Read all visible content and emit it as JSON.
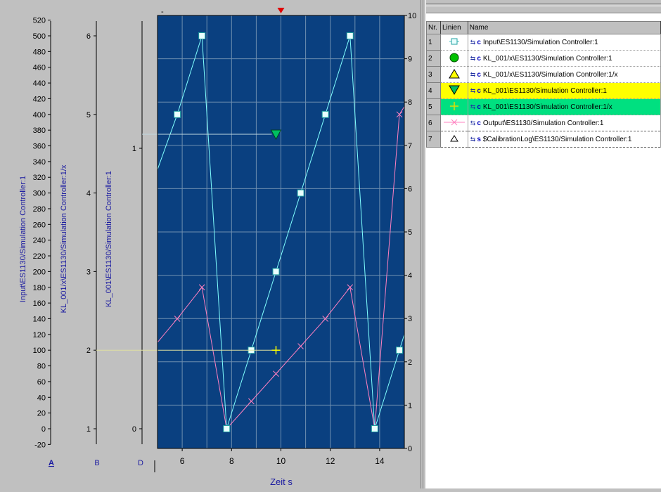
{
  "chart_data": {
    "type": "line",
    "xlabel": "Zeit s",
    "xlim": [
      5,
      15
    ],
    "x_ticks": [
      "6",
      "8",
      "10",
      "12",
      "14"
    ],
    "axes": [
      {
        "id": "A",
        "label": "Input\\ES1130/Simulation Controller:1",
        "range": [
          -20,
          520
        ],
        "ticks": [
          "520",
          "500",
          "480",
          "460",
          "440",
          "420",
          "400",
          "380",
          "360",
          "340",
          "320",
          "300",
          "280",
          "260",
          "240",
          "220",
          "200",
          "180",
          "160",
          "140",
          "120",
          "100",
          "80",
          "60",
          "40",
          "20",
          "0",
          "-20"
        ]
      },
      {
        "id": "B",
        "label": "KL_001/x\\ES1130/Simulation Controller:1/x",
        "range": [
          0.5,
          6.5
        ],
        "ticks": [
          "6",
          "5",
          "4",
          "3",
          "2",
          "1"
        ]
      },
      {
        "id": "D",
        "label": "KL_001\\ES1130/Simulation Controller:1",
        "range": [
          -0.1,
          1.2
        ],
        "ticks": [
          "1",
          "0"
        ]
      },
      {
        "id": "R",
        "label": "",
        "range": [
          0,
          10
        ],
        "ticks": [
          "10",
          "9",
          "8",
          "7",
          "6",
          "5",
          "4",
          "3",
          "2",
          "1",
          "0"
        ]
      }
    ],
    "axis_letters": [
      "A",
      "B",
      "D"
    ],
    "series": [
      {
        "name": "Input\\ES1130/Simulation Controller:1",
        "color": "#80ffff",
        "marker": "square",
        "points": [
          [
            5,
            330
          ],
          [
            5.8,
            400
          ],
          [
            6.8,
            500
          ],
          [
            7.8,
            0
          ],
          [
            8.8,
            100
          ],
          [
            9.8,
            200
          ],
          [
            10.8,
            300
          ],
          [
            11.8,
            400
          ],
          [
            12.8,
            500
          ],
          [
            13.8,
            0
          ],
          [
            14.8,
            100
          ],
          [
            15,
            120
          ]
        ]
      },
      {
        "name": "Output\\ES1130/Simulation Controller:1",
        "color": "#ff80c0",
        "marker": "cross",
        "points": [
          [
            5,
            110
          ],
          [
            5.8,
            140
          ],
          [
            6.8,
            180
          ],
          [
            7.8,
            0
          ],
          [
            8.8,
            35
          ],
          [
            9.8,
            70
          ],
          [
            10.8,
            105
          ],
          [
            11.8,
            140
          ],
          [
            12.8,
            180
          ],
          [
            13.8,
            0
          ],
          [
            14.8,
            400
          ],
          [
            15,
            410
          ]
        ]
      },
      {
        "name": "KL_001/x\\ES1130/Simulation Controller:1/x",
        "color": "#ffff00",
        "marker": "plus",
        "axis": "B",
        "points": [
          [
            9.8,
            2
          ]
        ]
      },
      {
        "name": "KL_001\\ES1130/Simulation Controller:1",
        "color": "#00c060",
        "marker": "triangle-down",
        "axis": "D",
        "points": [
          [
            9.8,
            1.05
          ]
        ]
      }
    ]
  },
  "minus_label": "-",
  "legend": {
    "headers": {
      "nr": "Nr.",
      "line": "Linien",
      "name": "Name"
    },
    "rows": [
      {
        "nr": "1",
        "marker": "square-icon",
        "name": "Input\\ES1130/Simulation Controller:1",
        "highlight": ""
      },
      {
        "nr": "2",
        "marker": "circle-icon",
        "name": "KL_001/x\\ES1130/Simulation Controller:1",
        "highlight": ""
      },
      {
        "nr": "3",
        "marker": "triangle-up-icon",
        "name": "KL_001/x\\ES1130/Simulation Controller:1/x",
        "highlight": ""
      },
      {
        "nr": "4",
        "marker": "triangle-down-icon",
        "name": "KL_001\\ES1130/Simulation Controller:1",
        "highlight": "#ffff00"
      },
      {
        "nr": "5",
        "marker": "plus-icon",
        "name": "KL_001\\ES1130/Simulation Controller:1/x",
        "highlight": "#00e080"
      },
      {
        "nr": "6",
        "marker": "x-icon",
        "name": "Output\\ES1130/Simulation Controller:1",
        "highlight": ""
      },
      {
        "nr": "7",
        "marker": "small-triangle-icon",
        "name": "$CalibrationLog\\ES1130/Simulation Controller:1",
        "highlight": ""
      }
    ]
  },
  "colors": {
    "plot_bg": "#0a4080",
    "grid": "#6f8fb0",
    "panel": "#c0c0c0",
    "cursor": "#e00000"
  }
}
